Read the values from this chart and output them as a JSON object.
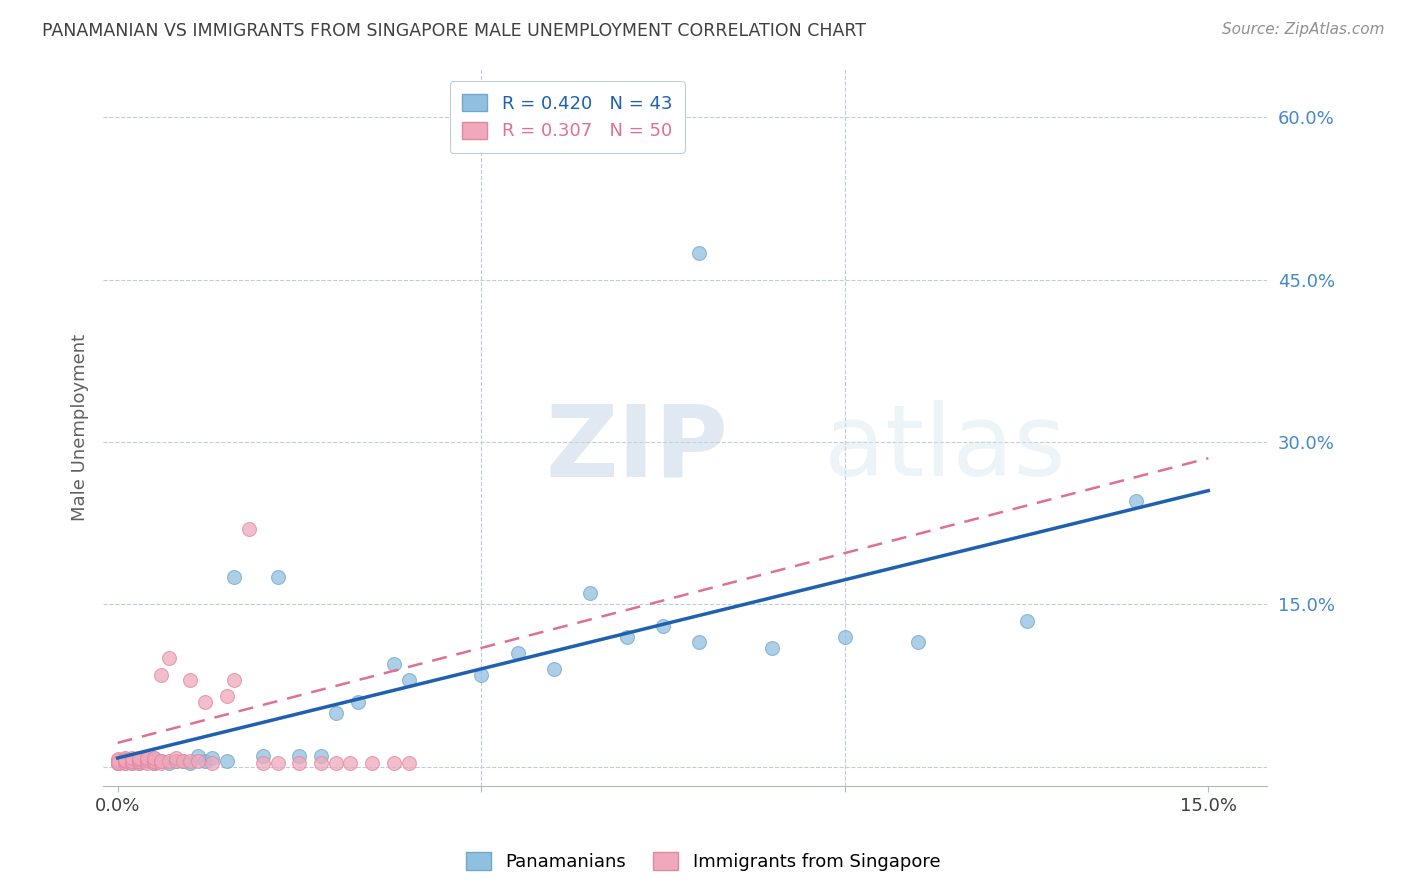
{
  "title": "PANAMANIAN VS IMMIGRANTS FROM SINGAPORE MALE UNEMPLOYMENT CORRELATION CHART",
  "source": "Source: ZipAtlas.com",
  "ylabel": "Male Unemployment",
  "right_ytick_labels": [
    "60.0%",
    "45.0%",
    "30.0%",
    "15.0%"
  ],
  "right_ytick_values": [
    0.6,
    0.45,
    0.3,
    0.15
  ],
  "xmin": -0.002,
  "xmax": 0.158,
  "ymin": -0.018,
  "ymax": 0.645,
  "legend_entries": [
    {
      "label": "R = 0.420   N = 43"
    },
    {
      "label": "R = 0.307   N = 50"
    }
  ],
  "legend_labels_bottom": [
    "Panamanians",
    "Immigrants from Singapore"
  ],
  "watermark_zip": "ZIP",
  "watermark_atlas": "atlas",
  "blue_color": "#90c0e0",
  "pink_color": "#f0a8bc",
  "blue_edge_color": "#70a8cc",
  "pink_edge_color": "#e088a0",
  "blue_line_color": "#2060b0",
  "pink_line_color": "#e07090",
  "title_color": "#404040",
  "axis_label_color": "#606060",
  "right_tick_color": "#4488cc",
  "grid_color": "#c0ccd8",
  "blue_scatter_x": [
    0.0,
    0.001,
    0.001,
    0.002,
    0.002,
    0.003,
    0.003,
    0.004,
    0.005,
    0.005,
    0.006,
    0.007,
    0.008,
    0.009,
    0.01,
    0.011,
    0.012,
    0.013,
    0.015,
    0.016,
    0.02,
    0.022,
    0.025,
    0.028,
    0.03,
    0.033,
    0.038,
    0.04,
    0.05,
    0.055,
    0.06,
    0.065,
    0.07,
    0.075,
    0.08,
    0.09,
    0.1,
    0.11,
    0.125,
    0.14,
    0.065,
    0.08,
    0.005
  ],
  "blue_scatter_y": [
    0.003,
    0.003,
    0.006,
    0.003,
    0.005,
    0.003,
    0.005,
    0.005,
    0.003,
    0.008,
    0.005,
    0.003,
    0.005,
    0.005,
    0.003,
    0.01,
    0.005,
    0.008,
    0.005,
    0.175,
    0.01,
    0.175,
    0.01,
    0.01,
    0.05,
    0.06,
    0.095,
    0.08,
    0.085,
    0.105,
    0.09,
    0.16,
    0.12,
    0.13,
    0.115,
    0.11,
    0.12,
    0.115,
    0.135,
    0.245,
    0.605,
    0.475,
    0.003
  ],
  "pink_scatter_x": [
    0.0,
    0.0,
    0.0,
    0.0,
    0.0,
    0.0,
    0.0,
    0.001,
    0.001,
    0.001,
    0.001,
    0.001,
    0.002,
    0.002,
    0.002,
    0.003,
    0.003,
    0.003,
    0.003,
    0.004,
    0.004,
    0.004,
    0.005,
    0.005,
    0.005,
    0.006,
    0.006,
    0.006,
    0.007,
    0.007,
    0.008,
    0.008,
    0.009,
    0.01,
    0.01,
    0.011,
    0.012,
    0.013,
    0.015,
    0.016,
    0.018,
    0.02,
    0.022,
    0.025,
    0.028,
    0.03,
    0.032,
    0.035,
    0.038,
    0.04
  ],
  "pink_scatter_y": [
    0.003,
    0.003,
    0.004,
    0.005,
    0.006,
    0.007,
    0.003,
    0.003,
    0.005,
    0.007,
    0.008,
    0.006,
    0.003,
    0.005,
    0.008,
    0.003,
    0.005,
    0.007,
    0.008,
    0.003,
    0.006,
    0.008,
    0.003,
    0.005,
    0.008,
    0.003,
    0.085,
    0.005,
    0.005,
    0.1,
    0.005,
    0.008,
    0.005,
    0.005,
    0.08,
    0.005,
    0.06,
    0.003,
    0.065,
    0.08,
    0.22,
    0.003,
    0.003,
    0.003,
    0.003,
    0.003,
    0.003,
    0.003,
    0.003,
    0.003
  ],
  "blue_trendline_x": [
    0.0,
    0.15
  ],
  "blue_trendline_y": [
    0.008,
    0.255
  ],
  "pink_trendline_x": [
    0.0,
    0.15
  ],
  "pink_trendline_y": [
    0.022,
    0.285
  ]
}
